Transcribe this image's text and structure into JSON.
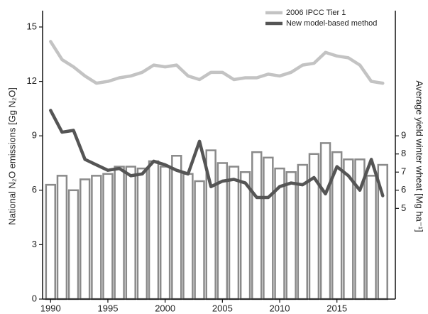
{
  "chart_data": {
    "type": "bar-line",
    "y_label": "National N₂O emissions [Gg N₂O]",
    "y2_label": "Average yield winter wheat [Mg ha⁻¹]",
    "x": [
      1990,
      1991,
      1992,
      1993,
      1994,
      1995,
      1996,
      1997,
      1998,
      1999,
      2000,
      2001,
      2002,
      2003,
      2004,
      2005,
      2006,
      2007,
      2008,
      2009,
      2010,
      2011,
      2012,
      2013,
      2014,
      2015,
      2016,
      2017,
      2018,
      2019
    ],
    "xlim": [
      1989.3,
      2020.1
    ],
    "xticks": [
      1990,
      1995,
      2000,
      2005,
      2010,
      2015
    ],
    "ylim": [
      0,
      15.9
    ],
    "yticks": [
      0,
      3,
      6,
      9,
      12,
      15
    ],
    "y2lim": [
      0,
      15.9
    ],
    "y2ticks": [
      5,
      6,
      7,
      8,
      9
    ],
    "legend": "top-right",
    "series": [
      {
        "name": "Average yield winter wheat",
        "kind": "bar",
        "axis": "y2",
        "color": "#8a8a8a",
        "values": [
          6.3,
          6.8,
          6.0,
          6.6,
          6.8,
          6.9,
          7.3,
          7.3,
          7.2,
          7.6,
          7.3,
          7.9,
          6.9,
          6.5,
          8.2,
          7.5,
          7.3,
          7.0,
          8.1,
          7.8,
          7.2,
          7.0,
          7.4,
          8.0,
          8.6,
          8.1,
          7.7,
          7.7,
          6.8,
          7.4
        ]
      },
      {
        "name": "2006 IPCC Tier 1",
        "kind": "line",
        "color": "#c3c3c3",
        "values": [
          14.2,
          13.2,
          12.8,
          12.3,
          11.9,
          12.0,
          12.2,
          12.3,
          12.5,
          12.9,
          12.8,
          12.9,
          12.3,
          12.1,
          12.5,
          12.5,
          12.1,
          12.2,
          12.2,
          12.4,
          12.3,
          12.5,
          12.9,
          13.0,
          13.6,
          13.4,
          13.3,
          12.9,
          12.0,
          11.9
        ]
      },
      {
        "name": "New model-based method",
        "kind": "line",
        "color": "#555555",
        "values": [
          10.4,
          9.2,
          9.3,
          7.7,
          7.4,
          7.1,
          7.2,
          6.8,
          6.9,
          7.6,
          7.4,
          7.1,
          6.9,
          8.7,
          6.2,
          6.5,
          6.6,
          6.4,
          5.6,
          5.6,
          6.2,
          6.4,
          6.3,
          6.7,
          5.8,
          7.3,
          6.8,
          6.0,
          7.7,
          5.7
        ]
      }
    ]
  }
}
